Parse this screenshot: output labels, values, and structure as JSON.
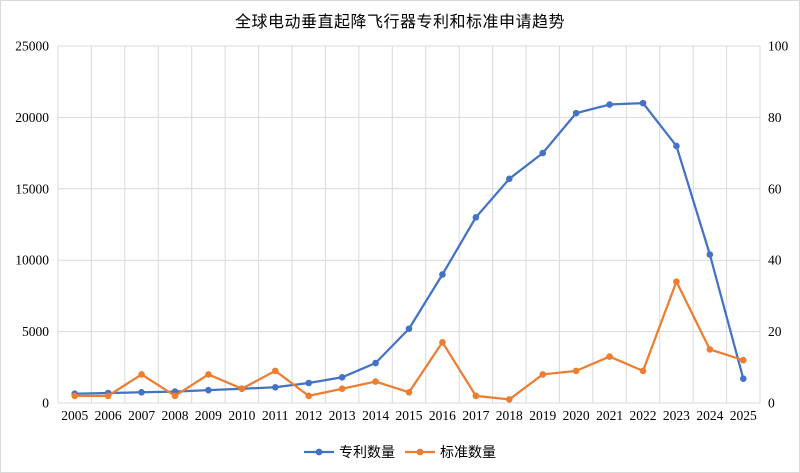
{
  "title": "全球电动垂直起降飞行器专利和标准申请趋势",
  "colors": {
    "background": "#ffffff",
    "grid": "#d9d9d9",
    "text": "#000000",
    "patent_series": "#4472C4",
    "standard_series": "#ED7D31"
  },
  "chart_data": {
    "type": "line",
    "title": "全球电动垂直起降飞行器专利和标准申请趋势",
    "categories": [
      "2005",
      "2006",
      "2007",
      "2008",
      "2009",
      "2010",
      "2011",
      "2012",
      "2013",
      "2014",
      "2015",
      "2016",
      "2017",
      "2018",
      "2019",
      "2020",
      "2021",
      "2022",
      "2023",
      "2024",
      "2025"
    ],
    "series": [
      {
        "name": "专利数量",
        "axis": "left",
        "color": "#4472C4",
        "values": [
          650,
          700,
          750,
          800,
          900,
          1000,
          1100,
          1400,
          1800,
          2800,
          5200,
          9000,
          13000,
          15700,
          17500,
          20300,
          20900,
          21000,
          18000,
          10400,
          1700
        ]
      },
      {
        "name": "标准数量",
        "axis": "right",
        "color": "#ED7D31",
        "values": [
          2,
          2,
          8,
          2,
          8,
          4,
          9,
          2,
          4,
          6,
          3,
          17,
          2,
          1,
          8,
          9,
          13,
          9,
          34,
          15,
          12
        ]
      }
    ],
    "left_axis": {
      "min": 0,
      "max": 25000,
      "ticks": [
        0,
        5000,
        10000,
        15000,
        20000,
        25000
      ]
    },
    "right_axis": {
      "min": 0,
      "max": 100,
      "ticks": [
        0,
        20,
        40,
        60,
        80,
        100
      ]
    },
    "grid": "on",
    "legend_position": "bottom",
    "xlabel": "",
    "ylabel": ""
  }
}
